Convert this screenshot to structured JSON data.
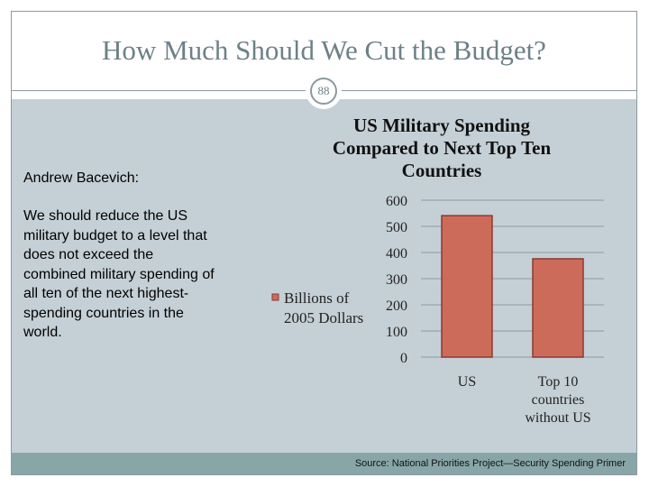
{
  "slide": {
    "title": "How Much Should We Cut the Budget?",
    "page_number": "88",
    "speaker": "Andrew Bacevich:",
    "quote": "We should reduce the US military budget to a level that does not exceed the combined military spending of all ten of the next highest-spending countries in the world.",
    "source": "Source: National Priorities Project—Security Spending Primer"
  },
  "chart_data": {
    "type": "bar",
    "title": [
      "US Military Spending",
      "Compared to Next Top Ten",
      "Countries"
    ],
    "categories": [
      [
        "US"
      ],
      [
        "Top 10",
        "countries",
        "without US"
      ]
    ],
    "series": [
      {
        "name": [
          "Billions of",
          "2005 Dollars"
        ],
        "values": [
          541,
          376
        ],
        "color": "#cd6b5b"
      }
    ],
    "ylim": [
      0,
      600
    ],
    "yticks": [
      0,
      100,
      200,
      300,
      400,
      500,
      600
    ],
    "grid": true,
    "legend": "left"
  }
}
